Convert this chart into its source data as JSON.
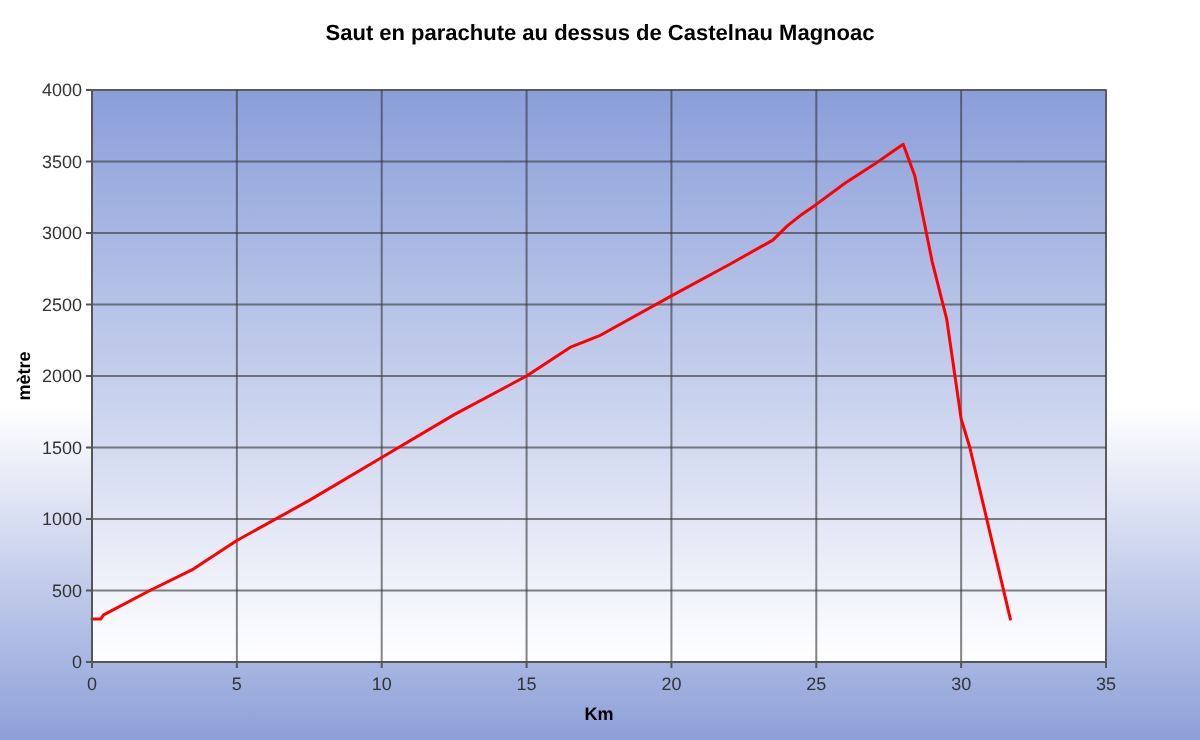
{
  "chart_data": {
    "type": "line",
    "title": "Saut en parachute au dessus de Castelnau Magnoac",
    "xlabel": "Km",
    "ylabel": "mètre",
    "x": [
      0,
      0.3,
      0.4,
      2,
      3.5,
      5,
      7.5,
      10,
      12.5,
      15,
      16.5,
      17.5,
      20,
      22,
      23.5,
      24,
      24.5,
      25,
      26,
      27,
      27.5,
      28,
      28.4,
      29,
      29.5,
      30,
      30.3,
      31,
      31.7
    ],
    "series": [
      {
        "color": "#ff0000",
        "values": [
          300,
          300,
          330,
          500,
          650,
          850,
          1130,
          1430,
          1730,
          2000,
          2200,
          2280,
          2560,
          2780,
          2950,
          3050,
          3130,
          3200,
          3350,
          3480,
          3550,
          3620,
          3400,
          2800,
          2400,
          1700,
          1500,
          900,
          300
        ]
      }
    ],
    "xlim": [
      0,
      35
    ],
    "xticks": [
      0,
      5,
      10,
      15,
      20,
      25,
      30,
      35
    ],
    "ylim": [
      0,
      4000
    ],
    "yticks": [
      0,
      500,
      1000,
      1500,
      2000,
      2500,
      3000,
      3500,
      4000
    ],
    "grid": true,
    "marker": "none",
    "line_style": "solid"
  }
}
